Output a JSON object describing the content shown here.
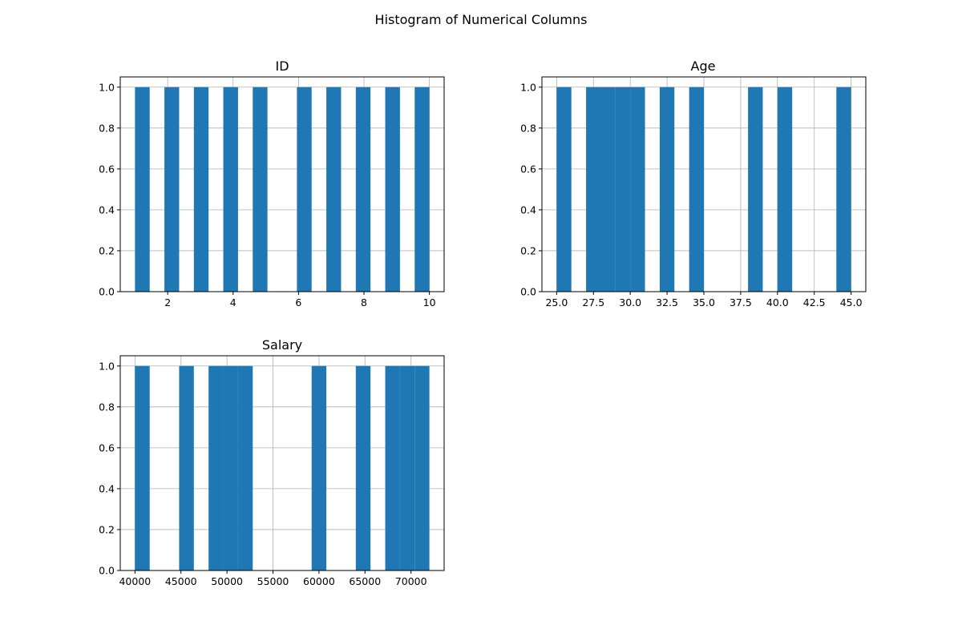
{
  "figure": {
    "title": "Histogram of Numerical Columns"
  },
  "colors": {
    "bar": "#1f77b4",
    "grid": "#b0b0b0",
    "axis": "#000000"
  },
  "chart_data": [
    {
      "type": "bar",
      "title": "ID",
      "xlabel": "",
      "ylabel": "",
      "bin_count": 20,
      "bin_range": [
        1,
        10
      ],
      "values": [
        1,
        2,
        3,
        4,
        5,
        6,
        7,
        8,
        9,
        10
      ],
      "bins": [
        {
          "x0": 1.0,
          "x1": 1.45,
          "count": 1
        },
        {
          "x0": 1.9,
          "x1": 2.35,
          "count": 1
        },
        {
          "x0": 2.8,
          "x1": 3.25,
          "count": 1
        },
        {
          "x0": 3.7,
          "x1": 4.15,
          "count": 1
        },
        {
          "x0": 4.6,
          "x1": 5.05,
          "count": 1
        },
        {
          "x0": 5.95,
          "x1": 6.4,
          "count": 1
        },
        {
          "x0": 6.85,
          "x1": 7.3,
          "count": 1
        },
        {
          "x0": 7.75,
          "x1": 8.2,
          "count": 1
        },
        {
          "x0": 8.65,
          "x1": 9.1,
          "count": 1
        },
        {
          "x0": 9.55,
          "x1": 10.0,
          "count": 1
        }
      ],
      "xlim": [
        0.55,
        10.45
      ],
      "ylim": [
        0,
        1.05
      ],
      "xticks": [
        2,
        4,
        6,
        8,
        10
      ],
      "xtick_labels": [
        "2",
        "4",
        "6",
        "8",
        "10"
      ],
      "yticks": [
        0.0,
        0.2,
        0.4,
        0.6,
        0.8,
        1.0
      ],
      "ytick_labels": [
        "0.0",
        "0.2",
        "0.4",
        "0.6",
        "0.8",
        "1.0"
      ],
      "grid": true
    },
    {
      "type": "bar",
      "title": "Age",
      "xlabel": "",
      "ylabel": "",
      "bin_count": 20,
      "bin_range": [
        25,
        45
      ],
      "values": [
        25,
        27,
        28,
        29,
        30,
        32,
        34,
        38,
        40,
        44
      ],
      "bins": [
        {
          "x0": 25,
          "x1": 26,
          "count": 1
        },
        {
          "x0": 27,
          "x1": 28,
          "count": 1
        },
        {
          "x0": 28,
          "x1": 29,
          "count": 1
        },
        {
          "x0": 29,
          "x1": 30,
          "count": 1
        },
        {
          "x0": 30,
          "x1": 31,
          "count": 1
        },
        {
          "x0": 32,
          "x1": 33,
          "count": 1
        },
        {
          "x0": 34,
          "x1": 35,
          "count": 1
        },
        {
          "x0": 38,
          "x1": 39,
          "count": 1
        },
        {
          "x0": 40,
          "x1": 41,
          "count": 1
        },
        {
          "x0": 44,
          "x1": 45,
          "count": 1
        }
      ],
      "xlim": [
        24.0,
        46.0
      ],
      "ylim": [
        0,
        1.05
      ],
      "xticks": [
        25.0,
        27.5,
        30.0,
        32.5,
        35.0,
        37.5,
        40.0,
        42.5,
        45.0
      ],
      "xtick_labels": [
        "25.0",
        "27.5",
        "30.0",
        "32.5",
        "35.0",
        "37.5",
        "40.0",
        "42.5",
        "45.0"
      ],
      "yticks": [
        0.0,
        0.2,
        0.4,
        0.6,
        0.8,
        1.0
      ],
      "ytick_labels": [
        "0.0",
        "0.2",
        "0.4",
        "0.6",
        "0.8",
        "1.0"
      ],
      "grid": true
    },
    {
      "type": "bar",
      "title": "Salary",
      "xlabel": "",
      "ylabel": "",
      "bin_count": 20,
      "bin_range": [
        40000,
        72000
      ],
      "values": [
        40000,
        45000,
        48000,
        50000,
        52000,
        60000,
        65000,
        68000,
        70000,
        72000
      ],
      "bins": [
        {
          "x0": 40000,
          "x1": 41600,
          "count": 1
        },
        {
          "x0": 44800,
          "x1": 46400,
          "count": 1
        },
        {
          "x0": 48000,
          "x1": 49600,
          "count": 1
        },
        {
          "x0": 49600,
          "x1": 51200,
          "count": 1
        },
        {
          "x0": 51200,
          "x1": 52800,
          "count": 1
        },
        {
          "x0": 59200,
          "x1": 60800,
          "count": 1
        },
        {
          "x0": 64000,
          "x1": 65600,
          "count": 1
        },
        {
          "x0": 67200,
          "x1": 68800,
          "count": 1
        },
        {
          "x0": 68800,
          "x1": 70400,
          "count": 1
        },
        {
          "x0": 70400,
          "x1": 72000,
          "count": 1
        }
      ],
      "xlim": [
        38400,
        73600
      ],
      "ylim": [
        0,
        1.05
      ],
      "xticks": [
        40000,
        45000,
        50000,
        55000,
        60000,
        65000,
        70000
      ],
      "xtick_labels": [
        "40000",
        "45000",
        "50000",
        "55000",
        "60000",
        "65000",
        "70000"
      ],
      "yticks": [
        0.0,
        0.2,
        0.4,
        0.6,
        0.8,
        1.0
      ],
      "ytick_labels": [
        "0.0",
        "0.2",
        "0.4",
        "0.6",
        "0.8",
        "1.0"
      ],
      "grid": true
    }
  ]
}
